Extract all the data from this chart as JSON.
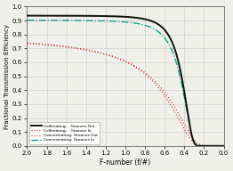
{
  "title": "",
  "xlabel": "F-number (f/#)",
  "ylabel": "Fractional Transmission Efficiency",
  "xlim": [
    2.0,
    0.0
  ],
  "ylim": [
    0.0,
    1.0
  ],
  "yticks": [
    0.0,
    0.1,
    0.2,
    0.3,
    0.4,
    0.5,
    0.6,
    0.7,
    0.8,
    0.9,
    1.0
  ],
  "xticks": [
    2.0,
    1.8,
    1.6,
    1.4,
    1.2,
    1.0,
    0.8,
    0.6,
    0.4,
    0.2,
    0.0
  ],
  "background_color": "#f0f0ea",
  "grid_color": "#bbbbbb",
  "curve1_color": "#111111",
  "curve2_color": "#cc3333",
  "curve3_color": "#cc3333",
  "curve4_color": "#009988"
}
